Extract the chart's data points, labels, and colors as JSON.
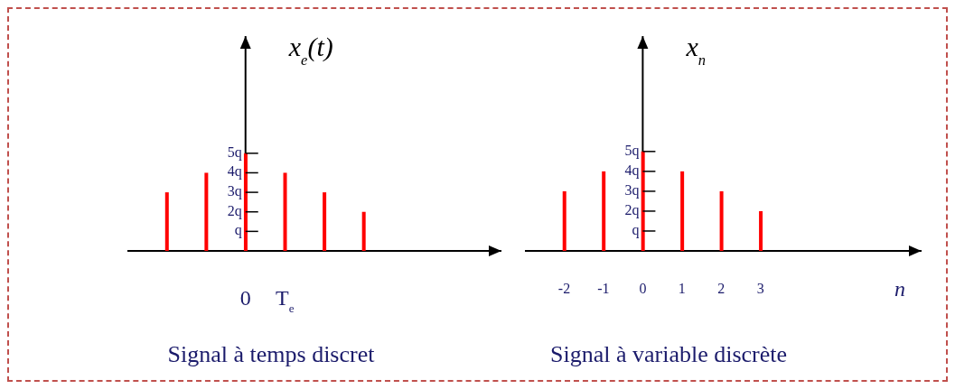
{
  "chart_data": [
    {
      "type": "bar",
      "ylabel": "x$_{e}$(t)",
      "title": "Signal à temps discret",
      "categories": [
        null,
        null,
        "0",
        "T$_{e}$",
        null,
        null
      ],
      "values": [
        3,
        4,
        5,
        4,
        3,
        2
      ],
      "color": "#ff0000",
      "ylim": [
        0,
        11
      ],
      "yticks": [
        {
          "value": 1,
          "label": "q"
        },
        {
          "value": 2,
          "label": "2q"
        },
        {
          "value": 3,
          "label": "3q"
        },
        {
          "value": 4,
          "label": "4q"
        },
        {
          "value": 5,
          "label": "5q"
        }
      ]
    },
    {
      "type": "bar",
      "ylabel": "x$_{n}$",
      "xlabel": "n",
      "title": "Signal à variable discrète",
      "x": [
        -2,
        -1,
        0,
        1,
        2,
        3
      ],
      "values": [
        3,
        4,
        5,
        4,
        3,
        2
      ],
      "color": "#ff0000",
      "xlim": [
        -3,
        7.1
      ],
      "xticks": [
        -2,
        -1,
        0,
        1,
        2,
        3
      ],
      "ylim": [
        0,
        10.8
      ],
      "yticks": [
        {
          "value": 1,
          "label": "q"
        },
        {
          "value": 2,
          "label": "2q"
        },
        {
          "value": 3,
          "label": "3q"
        },
        {
          "value": 4,
          "label": "4q"
        },
        {
          "value": 5,
          "label": "5q"
        }
      ]
    }
  ]
}
